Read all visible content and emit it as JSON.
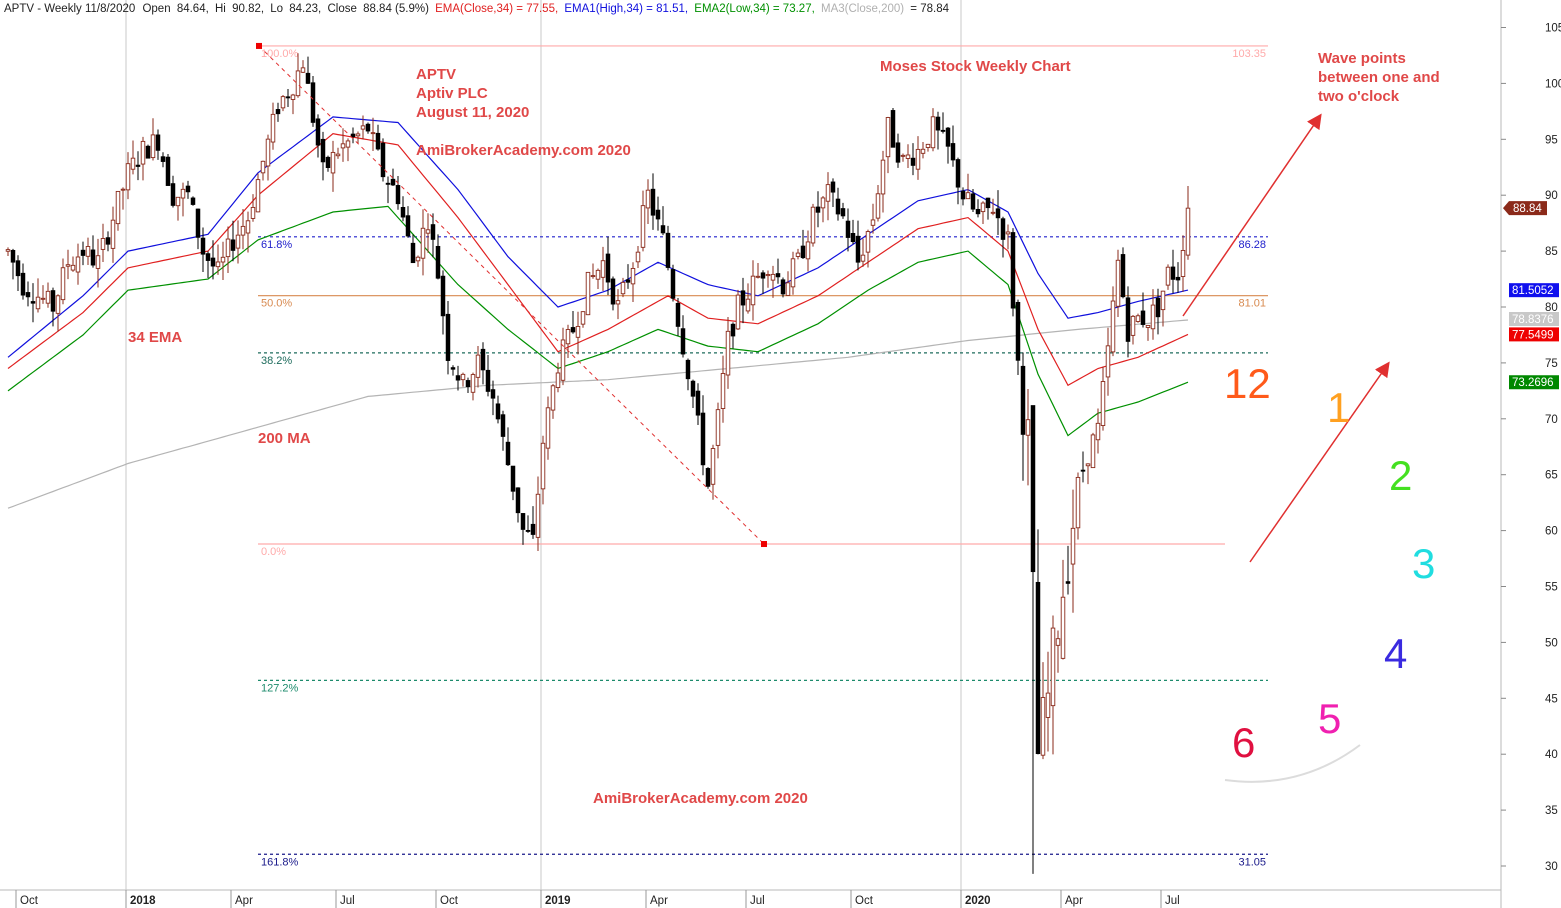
{
  "header": {
    "symbol": "APTV - Weekly 11/8/2020",
    "open_label": "Open",
    "open": "84.64",
    "hi_label": "Hi",
    "hi": "90.82",
    "lo_label": "Lo",
    "lo": "84.23",
    "close_label": "Close",
    "close": "88.84 (5.9%)",
    "ema_text": "EMA(Close,34) = 77.55,",
    "ema1_text": "EMA1(High,34) = 81.51,",
    "ema2_text": "EMA2(Low,34) = 73.27,",
    "ma3_name": "MA3(Close,200)",
    "ma3_value": "= 78.84"
  },
  "annotations": {
    "ticker": "APTV",
    "company": "Aptiv PLC",
    "date": "August 11, 2020",
    "site_top": "AmiBrokerAcademy.com  2020",
    "site_bottom": "AmiBrokerAcademy.com  2020",
    "chart_title": "Moses Stock Weekly Chart",
    "wave_line1": "Wave points",
    "wave_line2": "between one and",
    "wave_line3": "two o'clock",
    "ema_label": "34 EMA",
    "ma_label": "200 MA"
  },
  "clock": {
    "labels": [
      "12",
      "1",
      "2",
      "3",
      "4",
      "5",
      "6"
    ],
    "colors": [
      "#ff5a1a",
      "#ffa020",
      "#44e020",
      "#20dde0",
      "#3a2ae0",
      "#f020b0",
      "#e01040"
    ]
  },
  "fibonacci": [
    {
      "label": "100.0%",
      "value": 103.35,
      "right_label": "103.35",
      "color": "#ffaaaa",
      "dash": false
    },
    {
      "label": "61.8%",
      "value": 86.28,
      "right_label": "86.28",
      "color": "#2020cc",
      "dash": true
    },
    {
      "label": "50.0%",
      "value": 81.01,
      "right_label": "81.01",
      "color": "#d88a50",
      "dash": false
    },
    {
      "label": "38.2%",
      "value": 75.9,
      "right_label": "",
      "color": "#1d6b5c",
      "dash": true
    },
    {
      "label": "0.0%",
      "value": 58.8,
      "right_label": "",
      "color": "#ffaaaa",
      "dash": false
    },
    {
      "label": "127.2%",
      "value": 46.6,
      "right_label": "",
      "color": "#1d8b6c",
      "dash": true
    },
    {
      "label": "161.8%",
      "value": 31.05,
      "right_label": "31.05",
      "color": "#1a1a8a",
      "dash": true
    }
  ],
  "badges": [
    {
      "value": "88.84",
      "bg": "#8b2a1a",
      "price": 88.84
    },
    {
      "value": "81.5052",
      "bg": "#1010ee",
      "price": 81.5052
    },
    {
      "value": "78.8376",
      "bg": "#c8c8c8",
      "price": 78.8376
    },
    {
      "value": "77.5499",
      "bg": "#ee0000",
      "price": 77.5499
    },
    {
      "value": "73.2696",
      "bg": "#008800",
      "price": 73.2696
    }
  ],
  "chart_data": {
    "type": "candlestick",
    "y_ticks": [
      30,
      35,
      40,
      45,
      50,
      55,
      60,
      65,
      70,
      75,
      80,
      85,
      90,
      95,
      100,
      105
    ],
    "ylim": [
      28.5,
      107
    ],
    "x_labels": [
      {
        "label": "Oct",
        "bold": false,
        "bar": 2
      },
      {
        "label": "2018",
        "bold": true,
        "bar": 24
      },
      {
        "label": "Apr",
        "bold": false,
        "bar": 45
      },
      {
        "label": "Jul",
        "bold": false,
        "bar": 66
      },
      {
        "label": "Oct",
        "bold": false,
        "bar": 86
      },
      {
        "label": "2019",
        "bold": true,
        "bar": 107
      },
      {
        "label": "Apr",
        "bold": false,
        "bar": 128
      },
      {
        "label": "Jul",
        "bold": false,
        "bar": 148
      },
      {
        "label": "Oct",
        "bold": false,
        "bar": 169
      },
      {
        "label": "2020",
        "bold": true,
        "bar": 191
      },
      {
        "label": "Apr",
        "bold": false,
        "bar": 211
      },
      {
        "label": "Jul",
        "bold": false,
        "bar": 231
      }
    ],
    "anchors": [
      [
        0,
        85
      ],
      [
        3,
        82
      ],
      [
        6,
        81
      ],
      [
        9,
        80
      ],
      [
        12,
        84
      ],
      [
        15,
        85
      ],
      [
        18,
        84
      ],
      [
        21,
        88
      ],
      [
        24,
        92
      ],
      [
        27,
        94
      ],
      [
        30,
        95
      ],
      [
        33,
        90
      ],
      [
        36,
        90
      ],
      [
        39,
        85
      ],
      [
        42,
        83
      ],
      [
        45,
        86
      ],
      [
        48,
        88
      ],
      [
        51,
        93
      ],
      [
        54,
        98
      ],
      [
        57,
        100
      ],
      [
        59,
        102
      ],
      [
        61,
        97
      ],
      [
        63,
        92
      ],
      [
        66,
        94
      ],
      [
        69,
        95
      ],
      [
        72,
        96
      ],
      [
        75,
        92
      ],
      [
        78,
        90
      ],
      [
        81,
        84
      ],
      [
        84,
        88
      ],
      [
        86,
        83
      ],
      [
        88,
        76
      ],
      [
        91,
        73
      ],
      [
        94,
        75
      ],
      [
        97,
        72
      ],
      [
        100,
        66
      ],
      [
        103,
        60
      ],
      [
        105,
        59
      ],
      [
        107,
        68
      ],
      [
        110,
        75
      ],
      [
        113,
        78
      ],
      [
        116,
        82
      ],
      [
        119,
        84
      ],
      [
        122,
        80
      ],
      [
        125,
        84
      ],
      [
        128,
        90
      ],
      [
        131,
        86
      ],
      [
        134,
        79
      ],
      [
        137,
        72
      ],
      [
        140,
        64
      ],
      [
        142,
        70
      ],
      [
        144,
        77
      ],
      [
        146,
        80
      ],
      [
        149,
        82
      ],
      [
        152,
        84
      ],
      [
        155,
        82
      ],
      [
        158,
        84
      ],
      [
        161,
        88
      ],
      [
        164,
        90
      ],
      [
        167,
        88
      ],
      [
        170,
        84
      ],
      [
        173,
        88
      ],
      [
        176,
        96
      ],
      [
        179,
        93
      ],
      [
        182,
        94
      ],
      [
        185,
        96
      ],
      [
        188,
        94
      ],
      [
        191,
        90
      ],
      [
        194,
        88
      ],
      [
        197,
        89
      ],
      [
        200,
        86
      ],
      [
        202,
        75
      ],
      [
        204,
        68
      ],
      [
        206,
        40
      ],
      [
        208,
        45
      ],
      [
        210,
        52
      ],
      [
        212,
        58
      ],
      [
        214,
        64
      ],
      [
        216,
        67
      ],
      [
        218,
        69
      ],
      [
        220,
        76
      ],
      [
        222,
        84
      ],
      [
        224,
        78
      ],
      [
        226,
        79
      ],
      [
        228,
        79
      ],
      [
        230,
        80
      ],
      [
        232,
        83
      ],
      [
        234,
        83
      ],
      [
        236,
        88.84
      ]
    ],
    "ema_close_34": [
      [
        0,
        74.5
      ],
      [
        15,
        79.5
      ],
      [
        24,
        83.5
      ],
      [
        40,
        85
      ],
      [
        50,
        90
      ],
      [
        65,
        95.5
      ],
      [
        78,
        94.5
      ],
      [
        90,
        88
      ],
      [
        100,
        82
      ],
      [
        110,
        76
      ],
      [
        120,
        78
      ],
      [
        132,
        81
      ],
      [
        140,
        79
      ],
      [
        150,
        78.5
      ],
      [
        162,
        81
      ],
      [
        172,
        84
      ],
      [
        182,
        87
      ],
      [
        192,
        88
      ],
      [
        200,
        85
      ],
      [
        206,
        78
      ],
      [
        212,
        73
      ],
      [
        218,
        74.5
      ],
      [
        226,
        75.5
      ],
      [
        236,
        77.55
      ]
    ],
    "ema_high_34": [
      [
        0,
        75.5
      ],
      [
        15,
        81
      ],
      [
        24,
        85
      ],
      [
        40,
        86.5
      ],
      [
        50,
        92
      ],
      [
        65,
        97
      ],
      [
        78,
        96.5
      ],
      [
        90,
        90.5
      ],
      [
        100,
        84.5
      ],
      [
        110,
        80
      ],
      [
        120,
        81.5
      ],
      [
        130,
        84
      ],
      [
        140,
        82
      ],
      [
        150,
        81
      ],
      [
        162,
        83.5
      ],
      [
        172,
        86.5
      ],
      [
        182,
        89.5
      ],
      [
        192,
        90.5
      ],
      [
        200,
        88.5
      ],
      [
        206,
        83
      ],
      [
        212,
        79
      ],
      [
        218,
        79.5
      ],
      [
        226,
        80.5
      ],
      [
        236,
        81.51
      ]
    ],
    "ema_low_34": [
      [
        0,
        72.5
      ],
      [
        15,
        77.5
      ],
      [
        24,
        81.5
      ],
      [
        40,
        82.5
      ],
      [
        50,
        86
      ],
      [
        65,
        88.5
      ],
      [
        76,
        89
      ],
      [
        90,
        82
      ],
      [
        100,
        78
      ],
      [
        110,
        74.5
      ],
      [
        120,
        76
      ],
      [
        130,
        78
      ],
      [
        140,
        76.5
      ],
      [
        150,
        76
      ],
      [
        162,
        78.5
      ],
      [
        172,
        81.5
      ],
      [
        182,
        84
      ],
      [
        192,
        85
      ],
      [
        200,
        82
      ],
      [
        206,
        74
      ],
      [
        212,
        68.5
      ],
      [
        218,
        70.5
      ],
      [
        226,
        71.5
      ],
      [
        236,
        73.27
      ]
    ],
    "ma_close_200": [
      [
        0,
        62
      ],
      [
        24,
        66
      ],
      [
        48,
        69
      ],
      [
        72,
        72
      ],
      [
        96,
        73
      ],
      [
        120,
        73.5
      ],
      [
        144,
        74.5
      ],
      [
        168,
        75.5
      ],
      [
        192,
        77
      ],
      [
        214,
        78
      ],
      [
        236,
        78.84
      ]
    ]
  }
}
